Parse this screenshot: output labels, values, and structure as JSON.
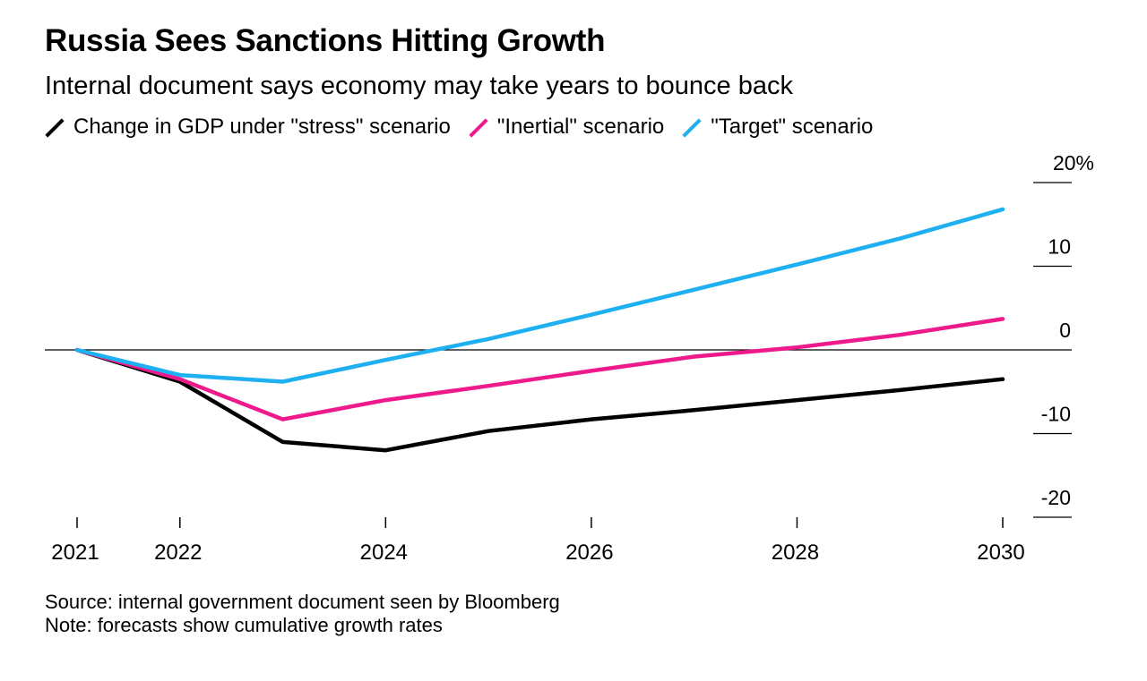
{
  "title": "Russia Sees Sanctions Hitting Growth",
  "subtitle": "Internal document says economy may take years to bounce back",
  "legend": {
    "stress": "Change in GDP under \"stress\" scenario",
    "inertial": "\"Inertial\" scenario",
    "target": "\"Target\" scenario"
  },
  "footnotes": {
    "source": "Source: internal government document seen by Bloomberg",
    "note": "Note: forecasts show cumulative growth rates"
  },
  "chart_data": {
    "type": "line",
    "x": [
      2021,
      2022,
      2023,
      2024,
      2025,
      2026,
      2027,
      2028,
      2029,
      2030
    ],
    "x_ticks": [
      2021,
      2022,
      2024,
      2026,
      2028,
      2030
    ],
    "y_ticks": [
      {
        "value": 20,
        "label": "20%"
      },
      {
        "value": 10,
        "label": "10"
      },
      {
        "value": 0,
        "label": "0"
      },
      {
        "value": -10,
        "label": "-10"
      },
      {
        "value": -20,
        "label": "-20"
      }
    ],
    "ylim": [
      -20,
      20
    ],
    "xlim": [
      2021,
      2030
    ],
    "series": [
      {
        "key": "stress",
        "color": "#000000",
        "values": [
          0,
          -3.8,
          -11.0,
          -12.0,
          -9.7,
          -8.3,
          -7.2,
          -6.0,
          -4.8,
          -3.5
        ]
      },
      {
        "key": "inertial",
        "color": "#ee1a8c",
        "values": [
          0,
          -3.5,
          -8.3,
          -6.0,
          -4.3,
          -2.5,
          -0.8,
          0.3,
          1.8,
          3.7
        ]
      },
      {
        "key": "target",
        "color": "#1eb0f0",
        "values": [
          0,
          -3.0,
          -3.8,
          -1.2,
          1.3,
          4.2,
          7.2,
          10.2,
          13.3,
          16.8
        ]
      }
    ]
  }
}
